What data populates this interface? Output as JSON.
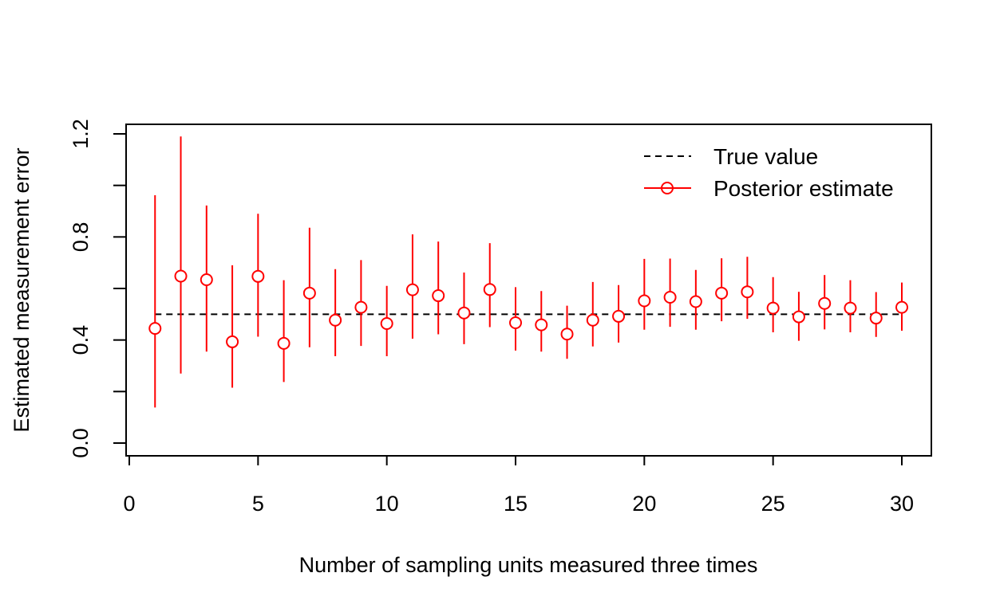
{
  "chart_data": {
    "type": "scatter",
    "xlabel": "Number of sampling units measured three times",
    "ylabel": "Estimated measurement error",
    "xlim": [
      0,
      30
    ],
    "ylim": [
      0,
      1.2
    ],
    "x_ticks": [
      0,
      5,
      10,
      15,
      20,
      25,
      30
    ],
    "y_ticks": [
      0.0,
      0.4,
      0.8,
      1.2
    ],
    "y_minor_ticks": [
      0.2,
      0.6,
      1.0
    ],
    "grid": false,
    "legend_position": "top-right",
    "reference_line": {
      "name": "True value",
      "y": 0.5,
      "x_from": 1,
      "x_to": 30,
      "style": "dashed",
      "color": "#000000"
    },
    "series": [
      {
        "name": "Posterior estimate",
        "color": "#ff0000",
        "marker": "open-circle",
        "x": [
          1,
          2,
          3,
          4,
          5,
          6,
          7,
          8,
          9,
          10,
          11,
          12,
          13,
          14,
          15,
          16,
          17,
          18,
          19,
          20,
          21,
          22,
          23,
          24,
          25,
          26,
          27,
          28,
          29,
          30
        ],
        "y": [
          0.445,
          0.648,
          0.634,
          0.393,
          0.647,
          0.387,
          0.582,
          0.477,
          0.527,
          0.464,
          0.595,
          0.572,
          0.505,
          0.596,
          0.467,
          0.459,
          0.423,
          0.477,
          0.492,
          0.552,
          0.566,
          0.549,
          0.582,
          0.587,
          0.524,
          0.49,
          0.542,
          0.524,
          0.485,
          0.527
        ],
        "lower": [
          0.138,
          0.27,
          0.355,
          0.215,
          0.413,
          0.237,
          0.372,
          0.337,
          0.377,
          0.337,
          0.405,
          0.422,
          0.384,
          0.45,
          0.359,
          0.355,
          0.327,
          0.375,
          0.39,
          0.44,
          0.451,
          0.44,
          0.473,
          0.482,
          0.43,
          0.397,
          0.441,
          0.43,
          0.412,
          0.436
        ],
        "upper": [
          0.962,
          1.19,
          0.922,
          0.69,
          0.89,
          0.632,
          0.836,
          0.675,
          0.71,
          0.61,
          0.81,
          0.782,
          0.662,
          0.776,
          0.605,
          0.59,
          0.533,
          0.625,
          0.613,
          0.715,
          0.716,
          0.672,
          0.717,
          0.723,
          0.644,
          0.587,
          0.652,
          0.632,
          0.586,
          0.623
        ]
      }
    ]
  }
}
